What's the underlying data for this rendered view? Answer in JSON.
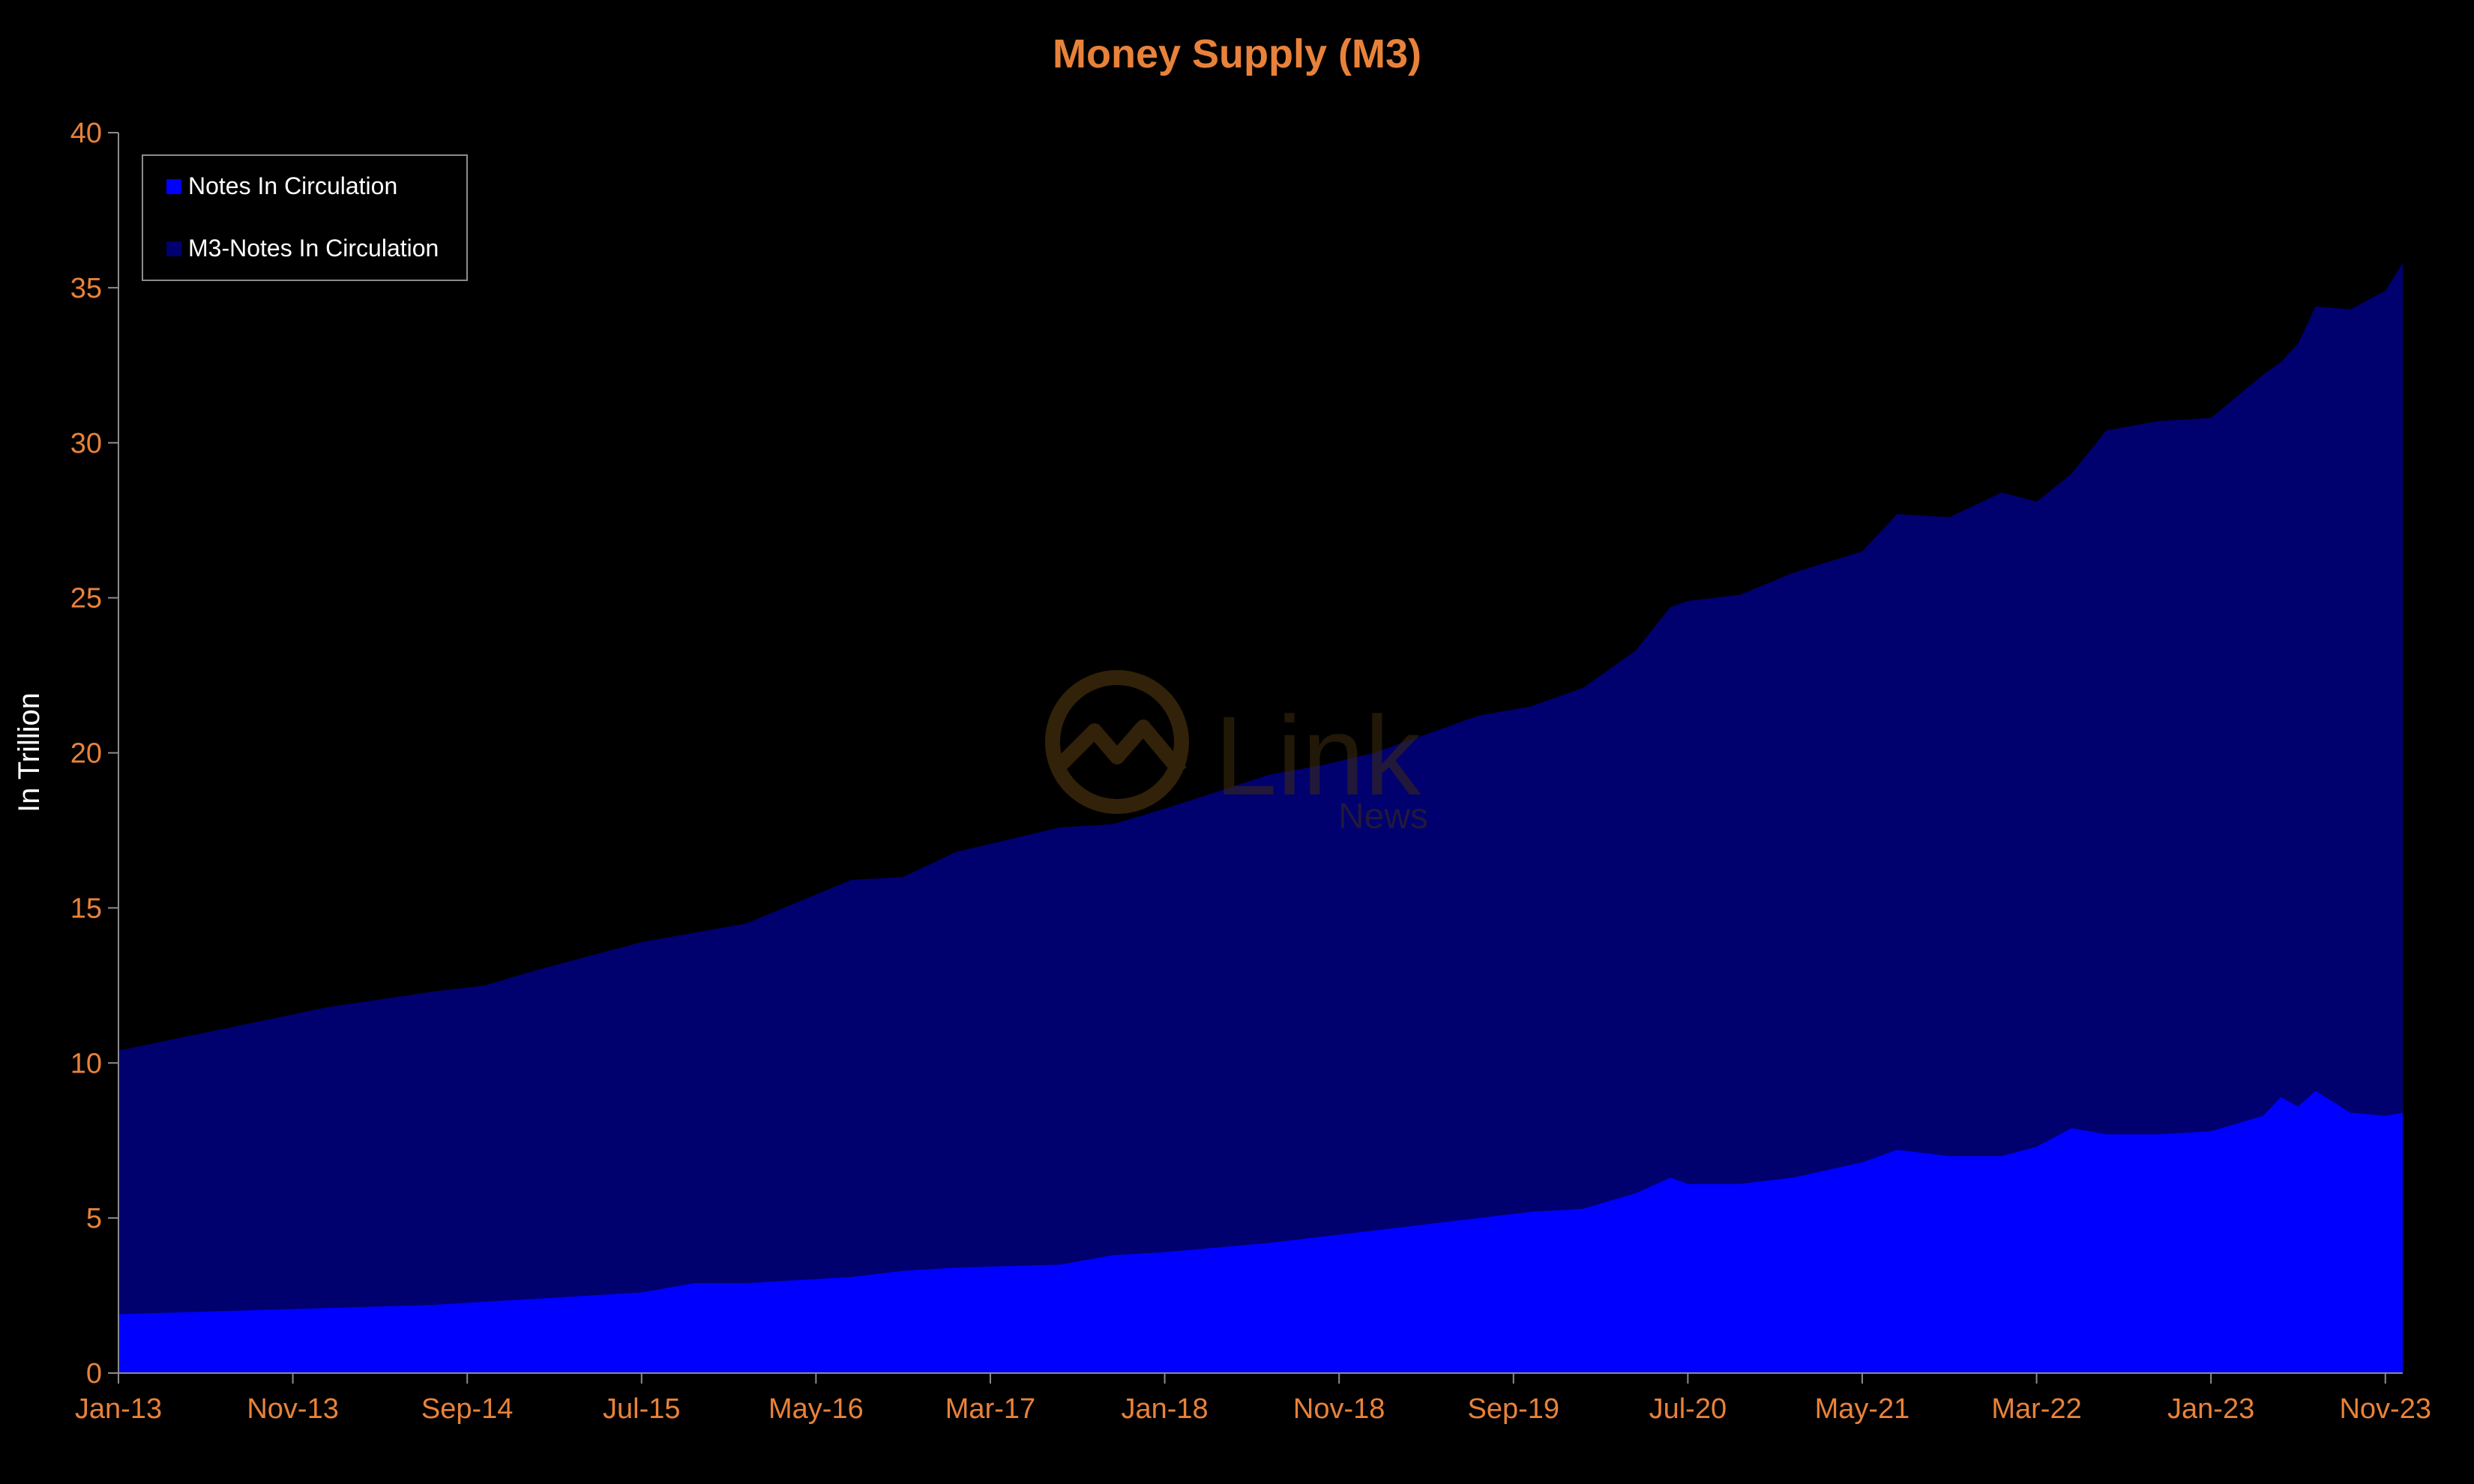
{
  "colors": {
    "background": "#000000",
    "title": "#e8823a",
    "ticks": "#e8823a",
    "axis": "#8c8c8c",
    "ylabel": "#ffffff",
    "legend_text": "#ffffff",
    "notes": "#0000ff",
    "m3_minus_notes": "#00006e",
    "watermark": "#3a2a10"
  },
  "watermark": {
    "icon": "chart-circle-logo-icon",
    "brand": "Link",
    "sub": "News"
  },
  "chart_data": {
    "type": "area",
    "stacked": true,
    "title": "Money Supply (M3)",
    "xlabel": "",
    "ylabel": "In Trillion",
    "ylim": [
      0,
      40
    ],
    "yticks": [
      0,
      5,
      10,
      15,
      20,
      25,
      30,
      35,
      40
    ],
    "xlim": [
      "2013-01",
      "2023-12"
    ],
    "xticks": [
      {
        "date": "2013-01",
        "label": "Jan-13"
      },
      {
        "date": "2013-11",
        "label": "Nov-13"
      },
      {
        "date": "2014-09",
        "label": "Sep-14"
      },
      {
        "date": "2015-07",
        "label": "Jul-15"
      },
      {
        "date": "2016-05",
        "label": "May-16"
      },
      {
        "date": "2017-03",
        "label": "Mar-17"
      },
      {
        "date": "2018-01",
        "label": "Jan-18"
      },
      {
        "date": "2018-11",
        "label": "Nov-18"
      },
      {
        "date": "2019-09",
        "label": "Sep-19"
      },
      {
        "date": "2020-07",
        "label": "Jul-20"
      },
      {
        "date": "2021-05",
        "label": "May-21"
      },
      {
        "date": "2022-03",
        "label": "Mar-22"
      },
      {
        "date": "2023-01",
        "label": "Jan-23"
      },
      {
        "date": "2023-11",
        "label": "Nov-23"
      }
    ],
    "legend_position": "top-left",
    "grid": false,
    "series": [
      {
        "name": "Notes In Circulation",
        "points": [
          [
            "2013-01",
            1.9
          ],
          [
            "2013-07",
            2.0
          ],
          [
            "2014-01",
            2.1
          ],
          [
            "2014-07",
            2.2
          ],
          [
            "2014-10",
            2.3
          ],
          [
            "2015-01",
            2.4
          ],
          [
            "2015-07",
            2.6
          ],
          [
            "2015-10",
            2.9
          ],
          [
            "2016-01",
            2.9
          ],
          [
            "2016-07",
            3.1
          ],
          [
            "2016-10",
            3.3
          ],
          [
            "2017-01",
            3.4
          ],
          [
            "2017-07",
            3.5
          ],
          [
            "2017-10",
            3.8
          ],
          [
            "2018-01",
            3.9
          ],
          [
            "2018-07",
            4.2
          ],
          [
            "2018-10",
            4.4
          ],
          [
            "2019-01",
            4.6
          ],
          [
            "2019-07",
            5.0
          ],
          [
            "2019-10",
            5.2
          ],
          [
            "2020-01",
            5.3
          ],
          [
            "2020-04",
            5.8
          ],
          [
            "2020-06",
            6.3
          ],
          [
            "2020-07",
            6.1
          ],
          [
            "2020-10",
            6.1
          ],
          [
            "2021-01",
            6.3
          ],
          [
            "2021-05",
            6.8
          ],
          [
            "2021-07",
            7.2
          ],
          [
            "2021-10",
            7.0
          ],
          [
            "2022-01",
            7.0
          ],
          [
            "2022-03",
            7.3
          ],
          [
            "2022-05",
            7.9
          ],
          [
            "2022-07",
            7.7
          ],
          [
            "2022-10",
            7.7
          ],
          [
            "2023-01",
            7.8
          ],
          [
            "2023-04",
            8.3
          ],
          [
            "2023-05",
            8.9
          ],
          [
            "2023-06",
            8.6
          ],
          [
            "2023-07",
            9.1
          ],
          [
            "2023-09",
            8.4
          ],
          [
            "2023-11",
            8.3
          ],
          [
            "2023-12",
            8.4
          ]
        ]
      },
      {
        "name": "M3-Notes In Circulation",
        "points": [
          [
            "2013-01",
            8.5
          ],
          [
            "2013-07",
            9.1
          ],
          [
            "2014-01",
            9.7
          ],
          [
            "2014-07",
            10.1
          ],
          [
            "2014-10",
            10.2
          ],
          [
            "2015-01",
            10.6
          ],
          [
            "2015-07",
            11.3
          ],
          [
            "2015-10",
            11.3
          ],
          [
            "2016-01",
            11.6
          ],
          [
            "2016-07",
            12.8
          ],
          [
            "2016-10",
            12.7
          ],
          [
            "2017-01",
            13.4
          ],
          [
            "2017-07",
            14.1
          ],
          [
            "2017-10",
            13.9
          ],
          [
            "2018-01",
            14.3
          ],
          [
            "2018-07",
            15.1
          ],
          [
            "2018-10",
            15.2
          ],
          [
            "2019-01",
            15.4
          ],
          [
            "2019-07",
            16.2
          ],
          [
            "2019-10",
            16.3
          ],
          [
            "2020-01",
            16.8
          ],
          [
            "2020-04",
            17.5
          ],
          [
            "2020-06",
            18.4
          ],
          [
            "2020-07",
            18.8
          ],
          [
            "2020-10",
            19.0
          ],
          [
            "2021-01",
            19.5
          ],
          [
            "2021-05",
            19.7
          ],
          [
            "2021-07",
            20.5
          ],
          [
            "2021-10",
            20.6
          ],
          [
            "2022-01",
            21.4
          ],
          [
            "2022-03",
            20.8
          ],
          [
            "2022-05",
            21.1
          ],
          [
            "2022-07",
            22.7
          ],
          [
            "2022-10",
            23.0
          ],
          [
            "2023-01",
            23.0
          ],
          [
            "2023-04",
            23.9
          ],
          [
            "2023-05",
            23.7
          ],
          [
            "2023-06",
            24.6
          ],
          [
            "2023-07",
            25.3
          ],
          [
            "2023-09",
            25.9
          ],
          [
            "2023-11",
            26.6
          ],
          [
            "2023-12",
            27.4
          ]
        ]
      }
    ]
  }
}
